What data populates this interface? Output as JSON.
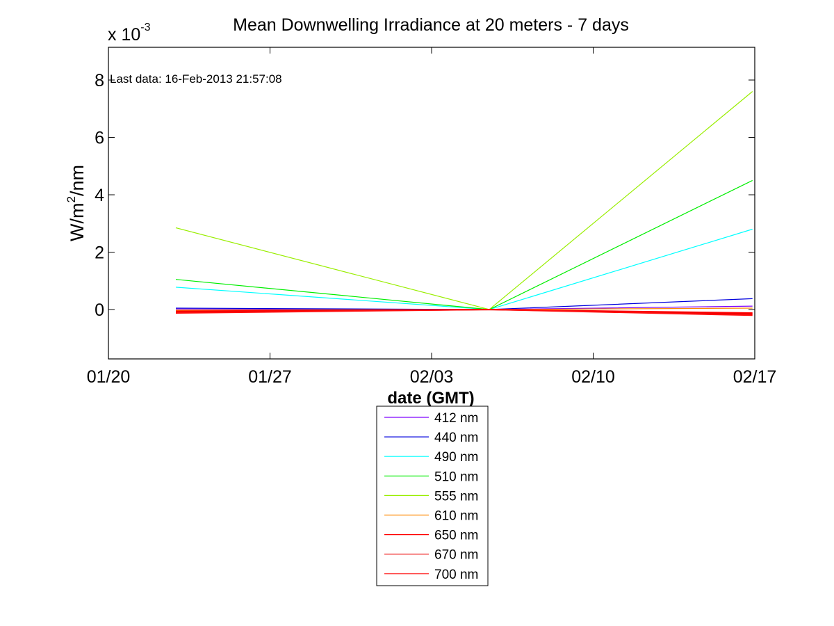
{
  "chart_data": {
    "type": "line",
    "title": "Mean Downwelling Irradiance at 20 meters - 7 days",
    "xlabel": "date (GMT)",
    "ylabel_base": "W/m",
    "ylabel_sup": "2",
    "ylabel_tail": "/nm",
    "y_multiplier_base": "x 10",
    "y_multiplier_exp": "-3",
    "annotation": "Last data: 16-Feb-2013 21:57:08",
    "xlim_days": [
      0,
      28
    ],
    "ylim": [
      -1.72,
      9.14
    ],
    "x_ticks": [
      {
        "day": 0,
        "label": "01/20"
      },
      {
        "day": 7,
        "label": "01/27"
      },
      {
        "day": 14,
        "label": "02/03"
      },
      {
        "day": 21,
        "label": "02/10"
      },
      {
        "day": 28,
        "label": "02/17"
      }
    ],
    "y_ticks": [
      {
        "value": 0,
        "label": "0"
      },
      {
        "value": 2,
        "label": "2"
      },
      {
        "value": 4,
        "label": "4"
      },
      {
        "value": 6,
        "label": "6"
      },
      {
        "value": 8,
        "label": "8"
      }
    ],
    "grid": false,
    "legend_position": "bottom-center",
    "x_day_note": "days since 01/20 (GMT)",
    "series": [
      {
        "name": "412 nm",
        "color": "#7f00ff",
        "points": [
          [
            2.92,
            0.02
          ],
          [
            16.5,
            0.0
          ],
          [
            27.9,
            0.12
          ]
        ]
      },
      {
        "name": "440 nm",
        "color": "#0000dd",
        "points": [
          [
            2.92,
            0.05
          ],
          [
            16.5,
            0.0
          ],
          [
            27.9,
            0.38
          ]
        ]
      },
      {
        "name": "490 nm",
        "color": "#00ffff",
        "points": [
          [
            2.92,
            0.78
          ],
          [
            16.5,
            0.0
          ],
          [
            27.9,
            2.8
          ]
        ]
      },
      {
        "name": "510 nm",
        "color": "#00ee00",
        "points": [
          [
            2.92,
            1.05
          ],
          [
            16.5,
            0.0
          ],
          [
            27.9,
            4.5
          ]
        ]
      },
      {
        "name": "555 nm",
        "color": "#99ee00",
        "points": [
          [
            2.92,
            2.85
          ],
          [
            16.5,
            0.0
          ],
          [
            27.9,
            7.6
          ]
        ]
      },
      {
        "name": "610 nm",
        "color": "#ff8800",
        "points": [
          [
            2.92,
            -0.02
          ],
          [
            16.5,
            0.0
          ],
          [
            27.9,
            0.05
          ]
        ]
      },
      {
        "name": "650 nm",
        "color": "#ff0000",
        "points": [
          [
            2.92,
            -0.06
          ],
          [
            16.5,
            0.0
          ],
          [
            27.9,
            -0.12
          ]
        ]
      },
      {
        "name": "670 nm",
        "color": "#ee0000",
        "points": [
          [
            2.92,
            -0.09
          ],
          [
            16.5,
            0.0
          ],
          [
            27.9,
            -0.16
          ]
        ]
      },
      {
        "name": "700 nm",
        "color": "#ff1010",
        "points": [
          [
            2.92,
            -0.12
          ],
          [
            16.5,
            0.0
          ],
          [
            27.9,
            -0.2
          ]
        ]
      }
    ]
  }
}
